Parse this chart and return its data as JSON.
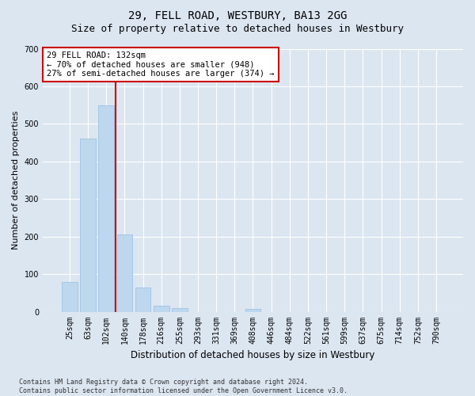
{
  "title": "29, FELL ROAD, WESTBURY, BA13 2GG",
  "subtitle": "Size of property relative to detached houses in Westbury",
  "xlabel": "Distribution of detached houses by size in Westbury",
  "ylabel": "Number of detached properties",
  "categories": [
    "25sqm",
    "63sqm",
    "102sqm",
    "140sqm",
    "178sqm",
    "216sqm",
    "255sqm",
    "293sqm",
    "331sqm",
    "369sqm",
    "408sqm",
    "446sqm",
    "484sqm",
    "522sqm",
    "561sqm",
    "599sqm",
    "637sqm",
    "675sqm",
    "714sqm",
    "752sqm",
    "790sqm"
  ],
  "values": [
    80,
    460,
    550,
    205,
    65,
    15,
    10,
    0,
    0,
    0,
    8,
    0,
    0,
    0,
    0,
    0,
    0,
    0,
    0,
    0,
    0
  ],
  "bar_color": "#bdd7ee",
  "bar_edge_color": "#9dc3e6",
  "vline_color": "#cc0000",
  "vline_x_index": 2.5,
  "annotation_text": "29 FELL ROAD: 132sqm\n← 70% of detached houses are smaller (948)\n27% of semi-detached houses are larger (374) →",
  "annotation_box_color": "#ffffff",
  "annotation_box_edge_color": "#cc0000",
  "ylim": [
    0,
    700
  ],
  "yticks": [
    0,
    100,
    200,
    300,
    400,
    500,
    600,
    700
  ],
  "bg_color": "#dce6f1",
  "plot_bg_color": "#dce6f1",
  "grid_color": "#ffffff",
  "footnote": "Contains HM Land Registry data © Crown copyright and database right 2024.\nContains public sector information licensed under the Open Government Licence v3.0.",
  "title_fontsize": 10,
  "subtitle_fontsize": 9,
  "xlabel_fontsize": 8.5,
  "ylabel_fontsize": 8,
  "tick_fontsize": 7,
  "annotation_fontsize": 7.5
}
